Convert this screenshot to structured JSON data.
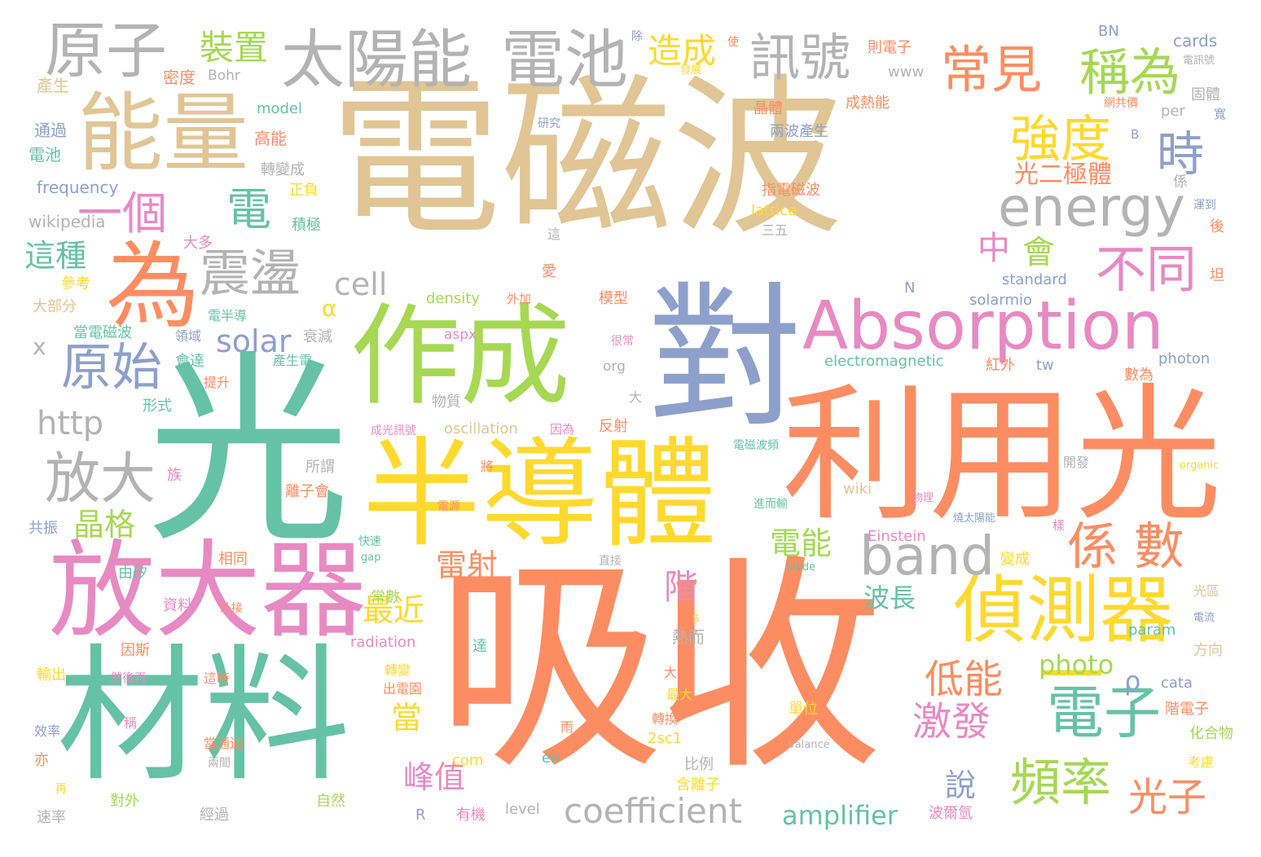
{
  "palette": {
    "tan": "#e1c595",
    "green": "#66c2a5",
    "orange": "#fc8d62",
    "blue": "#8da0cb",
    "pink": "#e78ac3",
    "lime": "#a6d854",
    "yellow": "#ffd92f",
    "gray": "#b3b3b3"
  },
  "words": [
    {
      "text": "電磁波",
      "color": "tan"
    },
    {
      "text": "吸收",
      "color": "orange"
    },
    {
      "text": "光",
      "color": "green"
    },
    {
      "text": "半導體",
      "color": "yellow"
    },
    {
      "text": "利用光",
      "color": "orange"
    },
    {
      "text": "材料",
      "color": "green"
    },
    {
      "text": "作成",
      "color": "lime"
    },
    {
      "text": "對",
      "color": "blue"
    },
    {
      "text": "放大器",
      "color": "pink"
    },
    {
      "text": "能量",
      "color": "tan"
    },
    {
      "text": "為",
      "color": "orange"
    },
    {
      "text": "Absorption",
      "color": "pink"
    },
    {
      "text": "太陽能",
      "color": "gray"
    },
    {
      "text": "電池",
      "color": "gray"
    },
    {
      "text": "偵測器",
      "color": "yellow"
    },
    {
      "text": "原子",
      "color": "gray"
    },
    {
      "text": "band",
      "color": "gray"
    },
    {
      "text": "energy",
      "color": "gray"
    },
    {
      "text": "訊號",
      "color": "gray"
    },
    {
      "text": "一",
      "color": "yellow"
    },
    {
      "text": "電子",
      "color": "green"
    },
    {
      "text": "頻率",
      "color": "lime"
    },
    {
      "text": "係 數",
      "color": "orange"
    },
    {
      "text": "稱為",
      "color": "lime"
    },
    {
      "text": "常見",
      "color": "orange"
    },
    {
      "text": "強度",
      "color": "yellow"
    },
    {
      "text": "時",
      "color": "blue"
    },
    {
      "text": "不同",
      "color": "pink"
    },
    {
      "text": "一個",
      "color": "pink"
    },
    {
      "text": "電",
      "color": "green"
    },
    {
      "text": "震盪",
      "color": "gray"
    },
    {
      "text": "原始",
      "color": "blue"
    },
    {
      "text": "放大",
      "color": "gray"
    },
    {
      "text": "coefficient",
      "color": "gray"
    },
    {
      "text": "激發",
      "color": "pink"
    },
    {
      "text": "低能",
      "color": "orange"
    },
    {
      "text": "光子",
      "color": "orange"
    },
    {
      "text": "裝置",
      "color": "lime"
    },
    {
      "text": "造成",
      "color": "yellow"
    },
    {
      "text": "晶格",
      "color": "lime"
    },
    {
      "text": "雷射",
      "color": "orange"
    },
    {
      "text": "電能",
      "color": "lime"
    },
    {
      "text": "最近",
      "color": "yellow"
    },
    {
      "text": "峰值",
      "color": "pink"
    },
    {
      "text": "光二極體",
      "color": "orange"
    },
    {
      "text": "這種",
      "color": "green"
    },
    {
      "text": "http",
      "color": "gray"
    },
    {
      "text": "solar",
      "color": "blue"
    },
    {
      "text": "cell",
      "color": "gray"
    },
    {
      "text": "photo",
      "color": "lime"
    },
    {
      "text": "amplifier",
      "color": "green"
    },
    {
      "text": "中",
      "color": "pink"
    },
    {
      "text": "會",
      "color": "lime"
    },
    {
      "text": "階",
      "color": "pink"
    },
    {
      "text": "波長",
      "color": "green"
    },
    {
      "text": "當",
      "color": "yellow"
    },
    {
      "text": "說",
      "color": "blue"
    },
    {
      "text": "ρ",
      "color": "blue"
    },
    {
      "text": "α",
      "color": "yellow"
    },
    {
      "text": "x",
      "color": "gray"
    },
    {
      "text": "frequency",
      "color": "blue"
    },
    {
      "text": "wikipedia",
      "color": "gray"
    },
    {
      "text": "Bohr",
      "color": "gray"
    },
    {
      "text": "密度",
      "color": "orange"
    },
    {
      "text": "產生",
      "color": "tan"
    },
    {
      "text": "通過",
      "color": "blue"
    },
    {
      "text": "電池",
      "color": "green"
    },
    {
      "text": "model",
      "color": "green"
    },
    {
      "text": "高能",
      "color": "orange"
    },
    {
      "text": "轉變成",
      "color": "gray"
    },
    {
      "text": "正負",
      "color": "yellow"
    },
    {
      "text": "積極",
      "color": "green"
    },
    {
      "text": "大多",
      "color": "pink"
    },
    {
      "text": "參考",
      "color": "yellow"
    },
    {
      "text": "大部分",
      "color": "tan"
    },
    {
      "text": "當電磁波",
      "color": "green"
    },
    {
      "text": "電半導",
      "color": "green"
    },
    {
      "text": "領域",
      "color": "blue"
    },
    {
      "text": "會達",
      "color": "green"
    },
    {
      "text": "衰減",
      "color": "gray"
    },
    {
      "text": "產生電",
      "color": "green"
    },
    {
      "text": "提升",
      "color": "orange"
    },
    {
      "text": "形式",
      "color": "green"
    },
    {
      "text": "物質",
      "color": "gray"
    },
    {
      "text": "所謂",
      "color": "gray"
    },
    {
      "text": "離子會",
      "color": "orange"
    },
    {
      "text": "族",
      "color": "pink"
    },
    {
      "text": "共振",
      "color": "blue"
    },
    {
      "text": "由矽",
      "color": "green"
    },
    {
      "text": "相同",
      "color": "orange"
    },
    {
      "text": "資料",
      "color": "pink"
    },
    {
      "text": "外接",
      "color": "orange"
    },
    {
      "text": "常數",
      "color": "lime"
    },
    {
      "text": "因斯",
      "color": "orange"
    },
    {
      "text": "輸出",
      "color": "yellow"
    },
    {
      "text": "然後再",
      "color": "pink"
    },
    {
      "text": "這時",
      "color": "orange"
    },
    {
      "text": "稱",
      "color": "pink"
    },
    {
      "text": "效率",
      "color": "blue"
    },
    {
      "text": "當通過",
      "color": "orange"
    },
    {
      "text": "兩間",
      "color": "gray"
    },
    {
      "text": "亦",
      "color": "orange"
    },
    {
      "text": "再",
      "color": "yellow"
    },
    {
      "text": "對外",
      "color": "lime"
    },
    {
      "text": "經過",
      "color": "gray"
    },
    {
      "text": "速率",
      "color": "gray"
    },
    {
      "text": "自然",
      "color": "lime"
    },
    {
      "text": "R",
      "color": "blue"
    },
    {
      "text": "有機",
      "color": "pink"
    },
    {
      "text": "level",
      "color": "gray"
    },
    {
      "text": "含離子",
      "color": "yellow"
    },
    {
      "text": "比例",
      "color": "gray"
    },
    {
      "text": "en",
      "color": "green"
    },
    {
      "text": "com",
      "color": "yellow"
    },
    {
      "text": "2sc1",
      "color": "yellow"
    },
    {
      "text": "轉換",
      "color": "orange"
    },
    {
      "text": "最大",
      "color": "yellow"
    },
    {
      "text": "大幅",
      "color": "orange"
    },
    {
      "text": "熱而",
      "color": "gray"
    },
    {
      "text": "達",
      "color": "green"
    },
    {
      "text": "轉變",
      "color": "yellow"
    },
    {
      "text": "出電園",
      "color": "orange"
    },
    {
      "text": "radiation",
      "color": "pink"
    },
    {
      "text": "s",
      "color": "yellow"
    },
    {
      "text": "直接",
      "color": "gray"
    },
    {
      "text": "快速",
      "color": "green"
    },
    {
      "text": "gap",
      "color": "green"
    },
    {
      "text": "電源",
      "color": "orange"
    },
    {
      "text": "將",
      "color": "orange"
    },
    {
      "text": "oscillation",
      "color": "tan"
    },
    {
      "text": "成光訊號",
      "color": "pink"
    },
    {
      "text": "因為",
      "color": "pink"
    },
    {
      "text": "反射",
      "color": "orange"
    },
    {
      "text": "大",
      "color": "gray"
    },
    {
      "text": "很常",
      "color": "pink"
    },
    {
      "text": "org",
      "color": "gray"
    },
    {
      "text": "aspx",
      "color": "pink"
    },
    {
      "text": "density",
      "color": "lime"
    },
    {
      "text": "外加",
      "color": "orange"
    },
    {
      "text": "模型",
      "color": "orange"
    },
    {
      "text": "愛",
      "color": "orange"
    },
    {
      "text": "這",
      "color": "gray"
    },
    {
      "text": "三五",
      "color": "gray"
    },
    {
      "text": "lattice",
      "color": "yellow"
    },
    {
      "text": "指電磁波",
      "color": "orange"
    },
    {
      "text": "兩波產生",
      "color": "blue"
    },
    {
      "text": "晶體",
      "color": "orange"
    },
    {
      "text": "成熱能",
      "color": "orange"
    },
    {
      "text": "則電子",
      "color": "orange"
    },
    {
      "text": "www",
      "color": "gray"
    },
    {
      "text": "研究",
      "color": "blue"
    },
    {
      "text": "發展",
      "color": "yellow"
    },
    {
      "text": "使",
      "color": "orange"
    },
    {
      "text": "除",
      "color": "blue"
    },
    {
      "text": "BN",
      "color": "blue"
    },
    {
      "text": "cards",
      "color": "blue"
    },
    {
      "text": "電訊號",
      "color": "gray"
    },
    {
      "text": "固體",
      "color": "gray"
    },
    {
      "text": "網共價",
      "color": "orange"
    },
    {
      "text": "per",
      "color": "gray"
    },
    {
      "text": "寬",
      "color": "blue"
    },
    {
      "text": "B",
      "color": "blue"
    },
    {
      "text": "係",
      "color": "gray"
    },
    {
      "text": "運到",
      "color": "blue"
    },
    {
      "text": "後",
      "color": "orange"
    },
    {
      "text": "standard",
      "color": "blue"
    },
    {
      "text": "坦",
      "color": "orange"
    },
    {
      "text": "N",
      "color": "blue"
    },
    {
      "text": "solarmio",
      "color": "blue"
    },
    {
      "text": "electromagnetic",
      "color": "green"
    },
    {
      "text": "紅外",
      "color": "orange"
    },
    {
      "text": "tw",
      "color": "blue"
    },
    {
      "text": "photon",
      "color": "blue"
    },
    {
      "text": "數為",
      "color": "orange"
    },
    {
      "text": "電磁波頻",
      "color": "green"
    },
    {
      "text": "開發",
      "color": "gray"
    },
    {
      "text": "organic",
      "color": "yellow"
    },
    {
      "text": "進而輸",
      "color": "green"
    },
    {
      "text": "wiki",
      "color": "tan"
    },
    {
      "text": "燒太陽能",
      "color": "blue"
    },
    {
      "text": "樣",
      "color": "pink"
    },
    {
      "text": "Einstein",
      "color": "pink"
    },
    {
      "text": "diode",
      "color": "green"
    },
    {
      "text": "變成",
      "color": "yellow"
    },
    {
      "text": "光區",
      "color": "tan"
    },
    {
      "text": "電流",
      "color": "blue"
    },
    {
      "text": "param",
      "color": "green"
    },
    {
      "text": "方向",
      "color": "tan"
    },
    {
      "text": "cata",
      "color": "blue"
    },
    {
      "text": "單位",
      "color": "yellow"
    },
    {
      "text": "valance",
      "color": "gray"
    },
    {
      "text": "階電子",
      "color": "orange"
    },
    {
      "text": "化合物",
      "color": "lime"
    },
    {
      "text": "考慮",
      "color": "yellow"
    },
    {
      "text": "波爾氫",
      "color": "pink"
    },
    {
      "text": "雨",
      "color": "orange"
    },
    {
      "text": "物理",
      "color": "pink"
    }
  ]
}
